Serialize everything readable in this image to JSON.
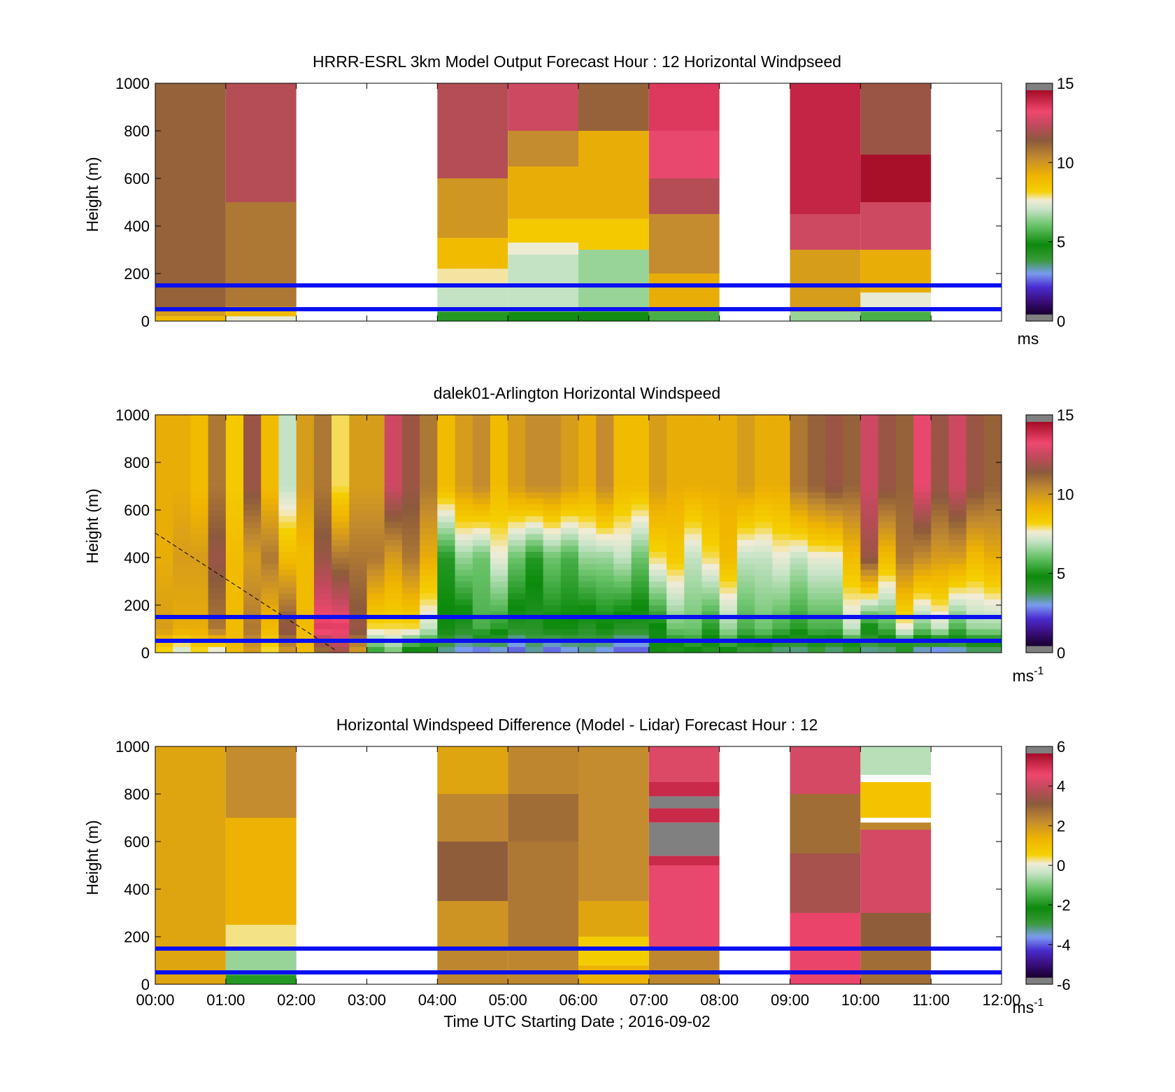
{
  "chart_data": [
    {
      "type": "heatmap",
      "title": "HRRR-ESRL 3km Model Output   Forecast Hour : 12 Horizontal Windpseed",
      "ylabel": "Height (m)",
      "unit_label": "ms",
      "unit_exponent": "",
      "ylim": [
        0,
        1000
      ],
      "yticks": [
        "0",
        "200",
        "400",
        "600",
        "800",
        "1000"
      ],
      "colorbar": {
        "min": 0,
        "max": 15,
        "ticks": [
          "0",
          "5",
          "10",
          "15"
        ]
      },
      "reference_lines_m": [
        50,
        150
      ],
      "x_hours": [
        0,
        12
      ],
      "columns": [
        {
          "t0": 0,
          "t1": 1,
          "bands": [
            [
              0,
              20,
              9
            ],
            [
              20,
              40,
              10
            ],
            [
              40,
              1000,
              11.5
            ]
          ]
        },
        {
          "t0": 1,
          "t1": 2,
          "bands": [
            [
              0,
              20,
              7.5
            ],
            [
              20,
              60,
              9
            ],
            [
              60,
              500,
              11
            ],
            [
              500,
              1000,
              12.5
            ]
          ]
        },
        {
          "t0": 4,
          "t1": 5,
          "bands": [
            [
              0,
              40,
              5
            ],
            [
              40,
              160,
              7
            ],
            [
              160,
              220,
              7.8
            ],
            [
              220,
              350,
              9
            ],
            [
              350,
              600,
              10.2
            ],
            [
              600,
              800,
              12.5
            ],
            [
              800,
              1000,
              12.5
            ]
          ]
        },
        {
          "t0": 5,
          "t1": 6,
          "bands": [
            [
              0,
              40,
              4.5
            ],
            [
              40,
              280,
              7
            ],
            [
              280,
              330,
              7.6
            ],
            [
              330,
              430,
              8.5
            ],
            [
              430,
              650,
              9.5
            ],
            [
              650,
              800,
              10.5
            ],
            [
              800,
              1000,
              13
            ]
          ]
        },
        {
          "t0": 6,
          "t1": 7,
          "bands": [
            [
              0,
              40,
              4.5
            ],
            [
              40,
              300,
              6.5
            ],
            [
              300,
              430,
              8.5
            ],
            [
              430,
              800,
              9.5
            ],
            [
              800,
              1000,
              11.5
            ]
          ]
        },
        {
          "t0": 7,
          "t1": 8,
          "bands": [
            [
              0,
              40,
              5.5
            ],
            [
              40,
              200,
              9.5
            ],
            [
              200,
              450,
              10.5
            ],
            [
              450,
              600,
              12.5
            ],
            [
              600,
              800,
              13.5
            ],
            [
              800,
              1000,
              14
            ]
          ]
        },
        {
          "t0": 9,
          "t1": 10,
          "bands": [
            [
              0,
              40,
              6.5
            ],
            [
              40,
              300,
              10
            ],
            [
              300,
              450,
              13
            ],
            [
              450,
              1000,
              14.5
            ]
          ]
        },
        {
          "t0": 10,
          "t1": 11,
          "bands": [
            [
              0,
              40,
              5.5
            ],
            [
              40,
              120,
              7.5
            ],
            [
              120,
              300,
              9.5
            ],
            [
              300,
              500,
              13
            ],
            [
              500,
              700,
              15
            ],
            [
              700,
              1000,
              12
            ]
          ]
        }
      ]
    },
    {
      "type": "heatmap",
      "title": "dalek01-Arlington  Horizontal Windspeed",
      "ylabel": "Height (m)",
      "unit_label": "ms",
      "unit_exponent": "-1",
      "ylim": [
        0,
        1000
      ],
      "yticks": [
        "0",
        "200",
        "400",
        "600",
        "800",
        "1000"
      ],
      "colorbar": {
        "min": 0,
        "max": 15,
        "ticks": [
          "0",
          "5",
          "10",
          "15"
        ]
      },
      "reference_lines_m": [
        50,
        150
      ],
      "x_hours": [
        0,
        12
      ],
      "column_hours": [
        0,
        0.25,
        0.5,
        0.75,
        1,
        1.25,
        1.5,
        1.75,
        2,
        2.25,
        2.5,
        2.75,
        3,
        3.25,
        3.5,
        3.75,
        4,
        4.25,
        4.5,
        4.75,
        5,
        5.25,
        5.5,
        5.75,
        6,
        6.25,
        6.5,
        6.75,
        7,
        7.25,
        7.5,
        7.75,
        8,
        8.25,
        8.5,
        8.75,
        9,
        9.25,
        9.5,
        9.75,
        10,
        10.25,
        10.5,
        10.75,
        11,
        11.25,
        11.5,
        11.75
      ],
      "column_profiles": [
        [
          8,
          10,
          9.5,
          9.5
        ],
        [
          7,
          9.5,
          10,
          9.5
        ],
        [
          8,
          9.5,
          10,
          9
        ],
        [
          7,
          11,
          12,
          11
        ],
        [
          9,
          9,
          9,
          8.5
        ],
        [
          10,
          11,
          10,
          12
        ],
        [
          8,
          9,
          11,
          9
        ],
        [
          10,
          12,
          9,
          7
        ],
        [
          9,
          9,
          9,
          10
        ],
        [
          11,
          14,
          12,
          11
        ],
        [
          12,
          14,
          11,
          8
        ],
        [
          10,
          12,
          11,
          10
        ],
        [
          5,
          8,
          11,
          10
        ],
        [
          6,
          8,
          10,
          13
        ],
        [
          4,
          8,
          11,
          12
        ],
        [
          4,
          7,
          9.5,
          11
        ],
        [
          3,
          4.5,
          5,
          9
        ],
        [
          2.5,
          4,
          6.5,
          10
        ],
        [
          2,
          5.5,
          6,
          10.5
        ],
        [
          2.5,
          5,
          7.5,
          9
        ],
        [
          2,
          4,
          6,
          10
        ],
        [
          3,
          4,
          5,
          10.5
        ],
        [
          2,
          4.5,
          6,
          10.5
        ],
        [
          2.5,
          4.5,
          5.5,
          10
        ],
        [
          3,
          4,
          6.5,
          9.5
        ],
        [
          2.5,
          4.5,
          6.5,
          10.5
        ],
        [
          2,
          4,
          7,
          9
        ],
        [
          2,
          4,
          6,
          9
        ],
        [
          4.5,
          4.5,
          8,
          10
        ],
        [
          4,
          6,
          8.5,
          9.5
        ],
        [
          4.5,
          6,
          7,
          9.5
        ],
        [
          4,
          5,
          8,
          9.5
        ],
        [
          4.5,
          6.5,
          9,
          9.5
        ],
        [
          3.5,
          5.5,
          7,
          10
        ],
        [
          3.5,
          6,
          7,
          9.5
        ],
        [
          3,
          5.5,
          7.5,
          9.5
        ],
        [
          3,
          5,
          7,
          11
        ],
        [
          3.5,
          5.5,
          7.5,
          11.5
        ],
        [
          3,
          5.5,
          7.5,
          12
        ],
        [
          3.5,
          7,
          9,
          11.5
        ],
        [
          3,
          4.5,
          12,
          13
        ],
        [
          3,
          5.5,
          9,
          12
        ],
        [
          3.5,
          7.5,
          11,
          11.5
        ],
        [
          2.5,
          6,
          10.5,
          13.5
        ],
        [
          2,
          7,
          10,
          12
        ],
        [
          2.5,
          5.5,
          10,
          13
        ],
        [
          3,
          6.5,
          9,
          12
        ],
        [
          3,
          6.5,
          9.5,
          11.5
        ]
      ]
    },
    {
      "type": "heatmap",
      "title": "Horizontal Windspeed Difference (Model - Lidar) Forecast Hour : 12",
      "xlabel": "Time UTC  Starting Date ; 2016-09-02",
      "ylabel": "Height (m)",
      "unit_label": "ms",
      "unit_exponent": "-1",
      "ylim": [
        0,
        1000
      ],
      "yticks": [
        "0",
        "200",
        "400",
        "600",
        "800",
        "1000"
      ],
      "xticks": [
        "00:00",
        "01:00",
        "02:00",
        "03:00",
        "04:00",
        "05:00",
        "06:00",
        "07:00",
        "08:00",
        "09:00",
        "10:00",
        "11:00",
        "12:00"
      ],
      "colorbar": {
        "min": -6,
        "max": 6,
        "ticks": [
          "-6",
          "-4",
          "-2",
          "0",
          "2",
          "4",
          "6"
        ]
      },
      "reference_lines_m": [
        50,
        150
      ],
      "x_hours": [
        0,
        12
      ],
      "columns": [
        {
          "t0": 0,
          "t1": 1,
          "bands": [
            [
              0,
              1000,
              1.8
            ]
          ]
        },
        {
          "t0": 1,
          "t1": 2,
          "bands": [
            [
              0,
              40,
              -2
            ],
            [
              40,
              150,
              -0.8
            ],
            [
              150,
              250,
              0.3
            ],
            [
              250,
              700,
              1.5
            ],
            [
              700,
              1000,
              2.4
            ]
          ]
        },
        {
          "t0": 4,
          "t1": 5,
          "bands": [
            [
              0,
              150,
              2.5
            ],
            [
              150,
              350,
              2.2
            ],
            [
              350,
              600,
              3.3
            ],
            [
              600,
              800,
              2.5
            ],
            [
              800,
              1000,
              1.8
            ]
          ]
        },
        {
          "t0": 5,
          "t1": 6,
          "bands": [
            [
              0,
              150,
              2.5
            ],
            [
              150,
              600,
              2.8
            ],
            [
              600,
              800,
              3
            ],
            [
              800,
              1000,
              2.5
            ]
          ]
        },
        {
          "t0": 6,
          "t1": 7,
          "bands": [
            [
              0,
              80,
              1.5
            ],
            [
              80,
              200,
              0.7
            ],
            [
              200,
              350,
              1.8
            ],
            [
              350,
              1000,
              2.4
            ]
          ]
        },
        {
          "t0": 7,
          "t1": 8,
          "bands": [
            [
              0,
              150,
              2.5
            ],
            [
              150,
              500,
              4.8
            ],
            [
              500,
              540,
              5.5
            ],
            [
              540,
              680,
              6.3
            ],
            [
              680,
              740,
              5.5
            ],
            [
              740,
              790,
              6.3
            ],
            [
              790,
              850,
              5.5
            ],
            [
              850,
              1000,
              4.6
            ]
          ]
        },
        {
          "t0": 9,
          "t1": 10,
          "bands": [
            [
              0,
              300,
              5
            ],
            [
              300,
              550,
              3.8
            ],
            [
              550,
              800,
              3
            ],
            [
              800,
              1000,
              4.5
            ]
          ]
        },
        {
          "t0": 10,
          "t1": 11,
          "bands": [
            [
              0,
              150,
              3
            ],
            [
              150,
              300,
              3.3
            ],
            [
              300,
              650,
              4.5
            ],
            [
              650,
              680,
              2.5
            ],
            [
              700,
              850,
              1
            ],
            [
              880,
              1000,
              -0.5
            ]
          ]
        }
      ]
    }
  ]
}
